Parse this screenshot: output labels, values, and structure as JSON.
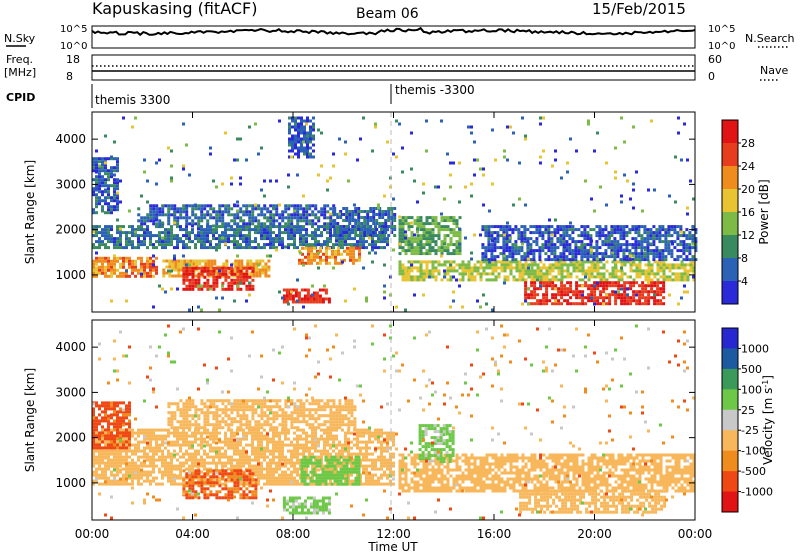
{
  "header": {
    "station": "Kapuskasing (fitACF)",
    "beam": "Beam 06",
    "date": "15/Feb/2015"
  },
  "status_panels": {
    "nsky_label": "N.Sky",
    "nsky_ticks": [
      "10^5",
      "10^0"
    ],
    "nsearch_label": "N.Search",
    "nsearch_ticks": [
      "10^5",
      "10^0"
    ],
    "freq_label_line1": "Freq.",
    "freq_label_line2": "[MHz]",
    "freq_ticks": [
      "18",
      "8"
    ],
    "nave_label": "Nave",
    "nave_ticks": [
      "60",
      "0"
    ],
    "cpid_label": "CPID",
    "cpid_entries": [
      {
        "text": "themis 3300",
        "start_hour": 0
      },
      {
        "text": "themis -3300",
        "start_hour": 12
      }
    ]
  },
  "chart_data": [
    {
      "type": "heatmap",
      "parameter": "Power",
      "ylabel": "Slant Range [km]",
      "xlabel": "Time UT",
      "xlim": [
        0,
        24
      ],
      "ylim": [
        180,
        4600
      ],
      "x_tick_labels": [
        "00:00",
        "04:00",
        "08:00",
        "12:00",
        "16:00",
        "20:00",
        "00:00"
      ],
      "y_ticks": [
        1000,
        2000,
        3000,
        4000
      ],
      "colorbar": {
        "label": "Power [dB]",
        "range": [
          0,
          32
        ],
        "tick_labels": [
          "4",
          "8",
          "12",
          "16",
          "20",
          "24",
          "28"
        ],
        "colors": [
          "#2a2ad8",
          "#2c62b5",
          "#3a8a5f",
          "#7dba46",
          "#e8c432",
          "#f08c1e",
          "#e83c1e",
          "#e01414"
        ]
      },
      "regions": [
        {
          "t": [
            0.0,
            11.8
          ],
          "r": [
            1620,
            2100
          ],
          "value": 7
        },
        {
          "t": [
            1.8,
            9.6
          ],
          "r": [
            2150,
            2560
          ],
          "value": 6
        },
        {
          "t": [
            0.0,
            2.6
          ],
          "r": [
            1000,
            1400
          ],
          "value": 22
        },
        {
          "t": [
            2.8,
            7.0
          ],
          "r": [
            1000,
            1340
          ],
          "value": 20
        },
        {
          "t": [
            3.6,
            6.4
          ],
          "r": [
            700,
            1180
          ],
          "value": 28
        },
        {
          "t": [
            7.6,
            9.4
          ],
          "r": [
            430,
            700
          ],
          "value": 28
        },
        {
          "t": [
            8.2,
            10.6
          ],
          "r": [
            1280,
            1620
          ],
          "value": 22
        },
        {
          "t": [
            9.6,
            12.0
          ],
          "r": [
            1900,
            2500
          ],
          "value": 6
        },
        {
          "t": [
            12.2,
            14.6
          ],
          "r": [
            1500,
            2300
          ],
          "value": 12
        },
        {
          "t": [
            12.2,
            24.0
          ],
          "r": [
            900,
            1320
          ],
          "value": 16
        },
        {
          "t": [
            17.2,
            22.8
          ],
          "r": [
            350,
            860
          ],
          "value": 28
        },
        {
          "t": [
            15.5,
            24.0
          ],
          "r": [
            1320,
            2100
          ],
          "value": 5
        },
        {
          "t": [
            0.0,
            1.0
          ],
          "r": [
            2400,
            3600
          ],
          "value": 6
        },
        {
          "t": [
            7.8,
            8.8
          ],
          "r": [
            3600,
            4500
          ],
          "value": 5
        },
        {
          "t": [
            0.0,
            24.0
          ],
          "r": [
            200,
            4500
          ],
          "value": 10,
          "sparse": true
        }
      ]
    },
    {
      "type": "heatmap",
      "parameter": "Velocity",
      "ylabel": "Slant Range [km]",
      "xlabel": "Time UT",
      "xlim": [
        0,
        24
      ],
      "ylim": [
        180,
        4600
      ],
      "x_tick_labels": [
        "00:00",
        "04:00",
        "08:00",
        "12:00",
        "16:00",
        "20:00",
        "00:00"
      ],
      "y_ticks": [
        1000,
        2000,
        3000,
        4000
      ],
      "colorbar": {
        "label": "Velocity [m s^-1]",
        "tick_labels": [
          "1000",
          "500",
          "100",
          "25",
          "-25",
          "-100",
          "-500",
          "-1000"
        ],
        "colors": [
          "#e01414",
          "#f04814",
          "#f08c1e",
          "#f7b75a",
          "#c8c8c8",
          "#6cc846",
          "#3a9a5a",
          "#1e5aa0",
          "#2828d0"
        ]
      },
      "regions": [
        {
          "t": [
            0.0,
            12.0
          ],
          "r": [
            1000,
            2200
          ],
          "value": 0
        },
        {
          "t": [
            3.0,
            10.5
          ],
          "r": [
            2200,
            2850
          ],
          "value": 0
        },
        {
          "t": [
            12.2,
            24.0
          ],
          "r": [
            850,
            1650
          ],
          "value": 0
        },
        {
          "t": [
            17.0,
            22.8
          ],
          "r": [
            350,
            850
          ],
          "value": 0
        },
        {
          "t": [
            0.0,
            1.5
          ],
          "r": [
            1800,
            2800
          ],
          "value": -150
        },
        {
          "t": [
            3.6,
            6.5
          ],
          "r": [
            700,
            1300
          ],
          "value": -120
        },
        {
          "t": [
            7.6,
            9.4
          ],
          "r": [
            350,
            700
          ],
          "value": 150
        },
        {
          "t": [
            8.3,
            10.6
          ],
          "r": [
            1000,
            1600
          ],
          "value": 300
        },
        {
          "t": [
            13.0,
            14.4
          ],
          "r": [
            1500,
            2300
          ],
          "value": 150
        },
        {
          "t": [
            0.0,
            24.0
          ],
          "r": [
            200,
            4500
          ],
          "value": 0,
          "sparse": true
        }
      ]
    }
  ]
}
